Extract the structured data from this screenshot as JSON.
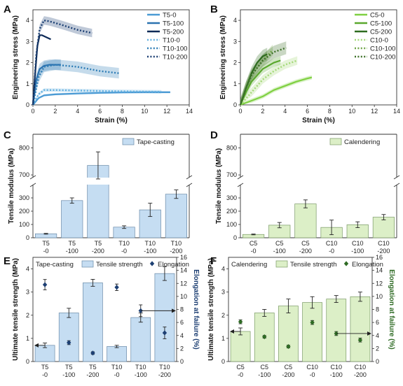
{
  "colors": {
    "t5_0": "#4a9ad4",
    "t5_100": "#2b72b0",
    "t5_200": "#0d2a57",
    "t10_0": "#63b0e0",
    "t10_100": "#2e7db6",
    "t10_200": "#1a3e72",
    "c5_0": "#7fd041",
    "c5_100": "#5aa82d",
    "c5_200": "#2e6b1f",
    "c10_0": "#a4d978",
    "c10_100": "#6ea447",
    "c10_200": "#3d7128",
    "bar_tape": "#c5ddf2",
    "bar_cal": "#dcefc7",
    "bar_edge": "#6a8aa8",
    "bar_edge_g": "#7a9a66",
    "elong_blue": "#1d3f73",
    "elong_green": "#2f6b25"
  },
  "chart_data": [
    {
      "panel": "A",
      "type": "line",
      "xlabel": "Strain (%)",
      "ylabel": "Engineering stress (MPa)",
      "xlim": [
        0,
        14
      ],
      "ylim": [
        0,
        4.5
      ],
      "xticks": [
        "0",
        "2",
        "4",
        "6",
        "8",
        "10",
        "12",
        "14"
      ],
      "yticks": [
        "0",
        "1",
        "2",
        "3",
        "4"
      ],
      "legend_position": "top-right",
      "series": [
        {
          "name": "T5-0",
          "style": "solid",
          "color_key": "t5_0",
          "x": [
            0,
            0.5,
            1,
            2,
            4,
            6,
            8,
            10,
            12.3
          ],
          "y": [
            0,
            0.32,
            0.45,
            0.5,
            0.54,
            0.57,
            0.59,
            0.6,
            0.6
          ],
          "band": 0.05
        },
        {
          "name": "T5-100",
          "style": "solid",
          "color_key": "t5_100",
          "x": [
            0,
            0.3,
            0.6,
            1,
            1.5,
            2.5
          ],
          "y": [
            0,
            1.2,
            1.7,
            1.85,
            1.9,
            1.9
          ],
          "band": 0.25
        },
        {
          "name": "T5-200",
          "style": "solid",
          "color_key": "t5_200",
          "x": [
            0,
            0.2,
            0.4,
            0.6,
            0.8,
            1.2,
            1.6
          ],
          "y": [
            0,
            1.5,
            2.8,
            3.3,
            3.3,
            3.2,
            3.1
          ],
          "band": 0
        },
        {
          "name": "T10-0",
          "style": "dotted",
          "color_key": "t10_0",
          "x": [
            0,
            0.5,
            1,
            2,
            4,
            7,
            10,
            11.5
          ],
          "y": [
            0,
            0.5,
            0.7,
            0.7,
            0.68,
            0.65,
            0.63,
            0.62
          ],
          "band": 0.08
        },
        {
          "name": "T10-100",
          "style": "dotted",
          "color_key": "t10_100",
          "x": [
            0,
            0.5,
            1,
            2,
            4,
            6,
            7.7
          ],
          "y": [
            0,
            1.3,
            1.8,
            1.9,
            1.8,
            1.6,
            1.5
          ],
          "band": 0.25
        },
        {
          "name": "T10-200",
          "style": "dotted",
          "color_key": "t10_200",
          "x": [
            0,
            0.3,
            0.6,
            1,
            1.5,
            2.5,
            4,
            5.3
          ],
          "y": [
            0,
            2.4,
            3.6,
            4.0,
            3.95,
            3.8,
            3.55,
            3.4
          ],
          "band": 0.2
        }
      ]
    },
    {
      "panel": "B",
      "type": "line",
      "xlabel": "Strain (%)",
      "ylabel": "Engineering stress (MPa)",
      "xlim": [
        0,
        14
      ],
      "ylim": [
        0,
        4.5
      ],
      "xticks": [
        "0",
        "2",
        "4",
        "6",
        "8",
        "10",
        "12",
        "14"
      ],
      "yticks": [
        "0",
        "1",
        "2",
        "3",
        "4"
      ],
      "legend_position": "top-right",
      "series": [
        {
          "name": "C5-0",
          "style": "solid",
          "color_key": "c5_0",
          "x": [
            0,
            1,
            2,
            3,
            4,
            5,
            6,
            6.4
          ],
          "y": [
            0,
            0.2,
            0.4,
            0.7,
            0.9,
            1.1,
            1.25,
            1.3
          ],
          "band": 0.1
        },
        {
          "name": "C5-100",
          "style": "solid",
          "color_key": "c5_100",
          "x": [
            0,
            0.5,
            1,
            2,
            3,
            3.6
          ],
          "y": [
            0,
            0.6,
            1.1,
            1.7,
            2.0,
            2.1
          ],
          "band": 0.2
        },
        {
          "name": "C5-200",
          "style": "solid",
          "color_key": "c5_200",
          "x": [
            0,
            0.5,
            1,
            1.5,
            2,
            2.4
          ],
          "y": [
            0,
            0.8,
            1.5,
            2.0,
            2.3,
            2.4
          ],
          "band": 0.3
        },
        {
          "name": "C10-0",
          "style": "dotted",
          "color_key": "c10_0",
          "x": [
            0,
            1,
            2,
            3,
            4,
            5.1
          ],
          "y": [
            0,
            0.6,
            1.2,
            1.6,
            1.9,
            2.1
          ],
          "band": 0.2
        },
        {
          "name": "C10-100",
          "style": "dotted",
          "color_key": "c10_100",
          "x": [
            0,
            0.5,
            1,
            2,
            2.9
          ],
          "y": [
            0,
            0.8,
            1.4,
            2.1,
            2.6
          ],
          "band": 0.25
        },
        {
          "name": "C10-200",
          "style": "dotted",
          "color_key": "c10_200",
          "x": [
            0,
            0.5,
            1,
            2,
            3,
            4.1
          ],
          "y": [
            0,
            0.8,
            1.4,
            2.1,
            2.5,
            2.7
          ],
          "band": 0.3
        }
      ]
    },
    {
      "panel": "C",
      "type": "bar",
      "legend": "Tape-casting",
      "legend_position": "top-right",
      "ylabel": "Tensile modulus (MPa)",
      "categories": [
        "T5\n-0",
        "T5\n-100",
        "T5\n-200",
        "T10\n-0",
        "T10\n-100",
        "T10\n-200"
      ],
      "values": [
        30,
        280,
        735,
        80,
        210,
        328
      ],
      "errors": [
        3,
        20,
        50,
        10,
        50,
        32
      ],
      "axis_break": [
        400,
        690
      ],
      "yticks": [
        "0",
        "100",
        "200",
        "300",
        "700",
        "800"
      ],
      "ylim": [
        0,
        850
      ]
    },
    {
      "panel": "D",
      "type": "bar",
      "legend": "Calendering",
      "legend_position": "top-right",
      "ylabel": "Tensile modulus (MPa)",
      "categories": [
        "C5\n-0",
        "C5\n-100",
        "C5\n-200",
        "C10\n-0",
        "C10\n-100",
        "C10\n-200"
      ],
      "values": [
        25,
        95,
        255,
        78,
        98,
        155
      ],
      "errors": [
        3,
        20,
        30,
        55,
        22,
        20
      ],
      "axis_break": [
        400,
        690
      ],
      "yticks": [
        "0",
        "100",
        "200",
        "300",
        "700",
        "800"
      ],
      "ylim": [
        0,
        850
      ]
    },
    {
      "panel": "E",
      "type": "bar",
      "legend": [
        "Tape-casting",
        "Tensile strength",
        "Elongation"
      ],
      "legend_position": "top",
      "ylabel": "Ultimate tensile strength (MPa)",
      "y2label": "Elongation at failure (%)",
      "categories": [
        "T5\n-0",
        "T5\n-100",
        "T5\n-200",
        "T10\n-0",
        "T10\n-100",
        "T10\n-200"
      ],
      "values": [
        0.7,
        2.1,
        3.4,
        0.65,
        1.9,
        3.8
      ],
      "errors": [
        0.1,
        0.2,
        0.15,
        0.05,
        0.2,
        0.3
      ],
      "elongation": [
        11.8,
        2.9,
        1.3,
        11.4,
        7.8,
        4.4
      ],
      "elongation_errors": [
        0.8,
        0.3,
        0.2,
        0.5,
        0.9,
        0.9
      ],
      "ylim": [
        0,
        4.5
      ],
      "y2lim": [
        0,
        16
      ],
      "yticks": [
        "0",
        "1",
        "2",
        "3",
        "4"
      ],
      "y2ticks": [
        "0",
        "2",
        "4",
        "6",
        "8",
        "10",
        "12",
        "14",
        "16"
      ]
    },
    {
      "panel": "F",
      "type": "bar",
      "legend": [
        "Calendering",
        "Tensile strength",
        "Elongation"
      ],
      "legend_position": "top",
      "ylabel": "Ultimate tensile strength (MPa)",
      "y2label": "Elongation at failure (%)",
      "categories": [
        "C5\n-0",
        "C5\n-100",
        "C5\n-200",
        "C10\n-0",
        "C10\n-100",
        "C10\n-200"
      ],
      "values": [
        1.3,
        2.1,
        2.4,
        2.55,
        2.7,
        2.8
      ],
      "errors": [
        0.15,
        0.15,
        0.3,
        0.25,
        0.15,
        0.2
      ],
      "elongation": [
        6.1,
        3.8,
        2.3,
        6.0,
        4.3,
        3.3
      ],
      "elongation_errors": [
        0.3,
        0.2,
        0.2,
        0.3,
        0.3,
        0.3
      ],
      "ylim": [
        0,
        4.5
      ],
      "y2lim": [
        0,
        16
      ],
      "yticks": [
        "0",
        "1",
        "2",
        "3",
        "4"
      ],
      "y2ticks": [
        "0",
        "2",
        "4",
        "6",
        "8",
        "10",
        "12",
        "14",
        "16"
      ]
    }
  ]
}
